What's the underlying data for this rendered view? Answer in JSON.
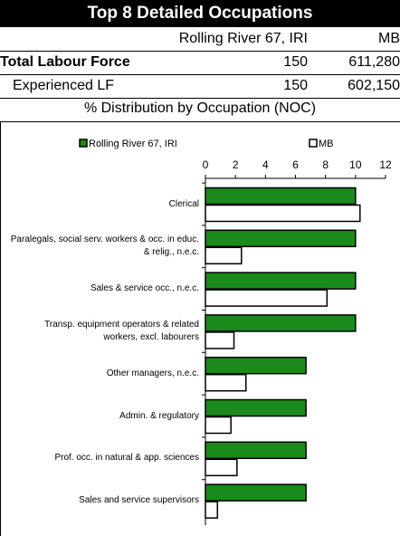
{
  "header": {
    "title": "Top 8 Detailed Occupations"
  },
  "table": {
    "columns": [
      "Rolling River 67, IRI",
      "MB"
    ],
    "rows": [
      [
        "Total Labour Force",
        "150",
        "611,280"
      ],
      [
        "Experienced LF",
        "150",
        "602,150"
      ]
    ],
    "caption": "% Distribution by Occupation (NOC)"
  },
  "chart_data": {
    "type": "bar",
    "orientation": "horizontal",
    "categories": [
      "Clerical",
      "Paralegals, social serv. workers & occ. in educ. & relig., n.e.c.",
      "Sales & service occ., n.e.c.",
      "Transp. equipment operators & related workers, excl. labourers",
      "Other managers, n.e.c.",
      "Admin. & regulatory",
      "Prof. occ. in natural & app. sciences",
      "Sales and service supervisors"
    ],
    "series": [
      {
        "name": "Rolling River 67, IRI",
        "color": "#1a8a1a",
        "values": [
          10,
          10,
          10,
          10,
          6.7,
          6.7,
          6.7,
          6.7
        ]
      },
      {
        "name": "MB",
        "color": "#ffffff",
        "values": [
          10.3,
          2.4,
          8.1,
          1.9,
          2.7,
          1.7,
          2.1,
          0.8
        ]
      }
    ],
    "xlim": [
      0,
      12
    ],
    "xticks": [
      0,
      2,
      4,
      6,
      8,
      10,
      12
    ],
    "legend": "top"
  }
}
